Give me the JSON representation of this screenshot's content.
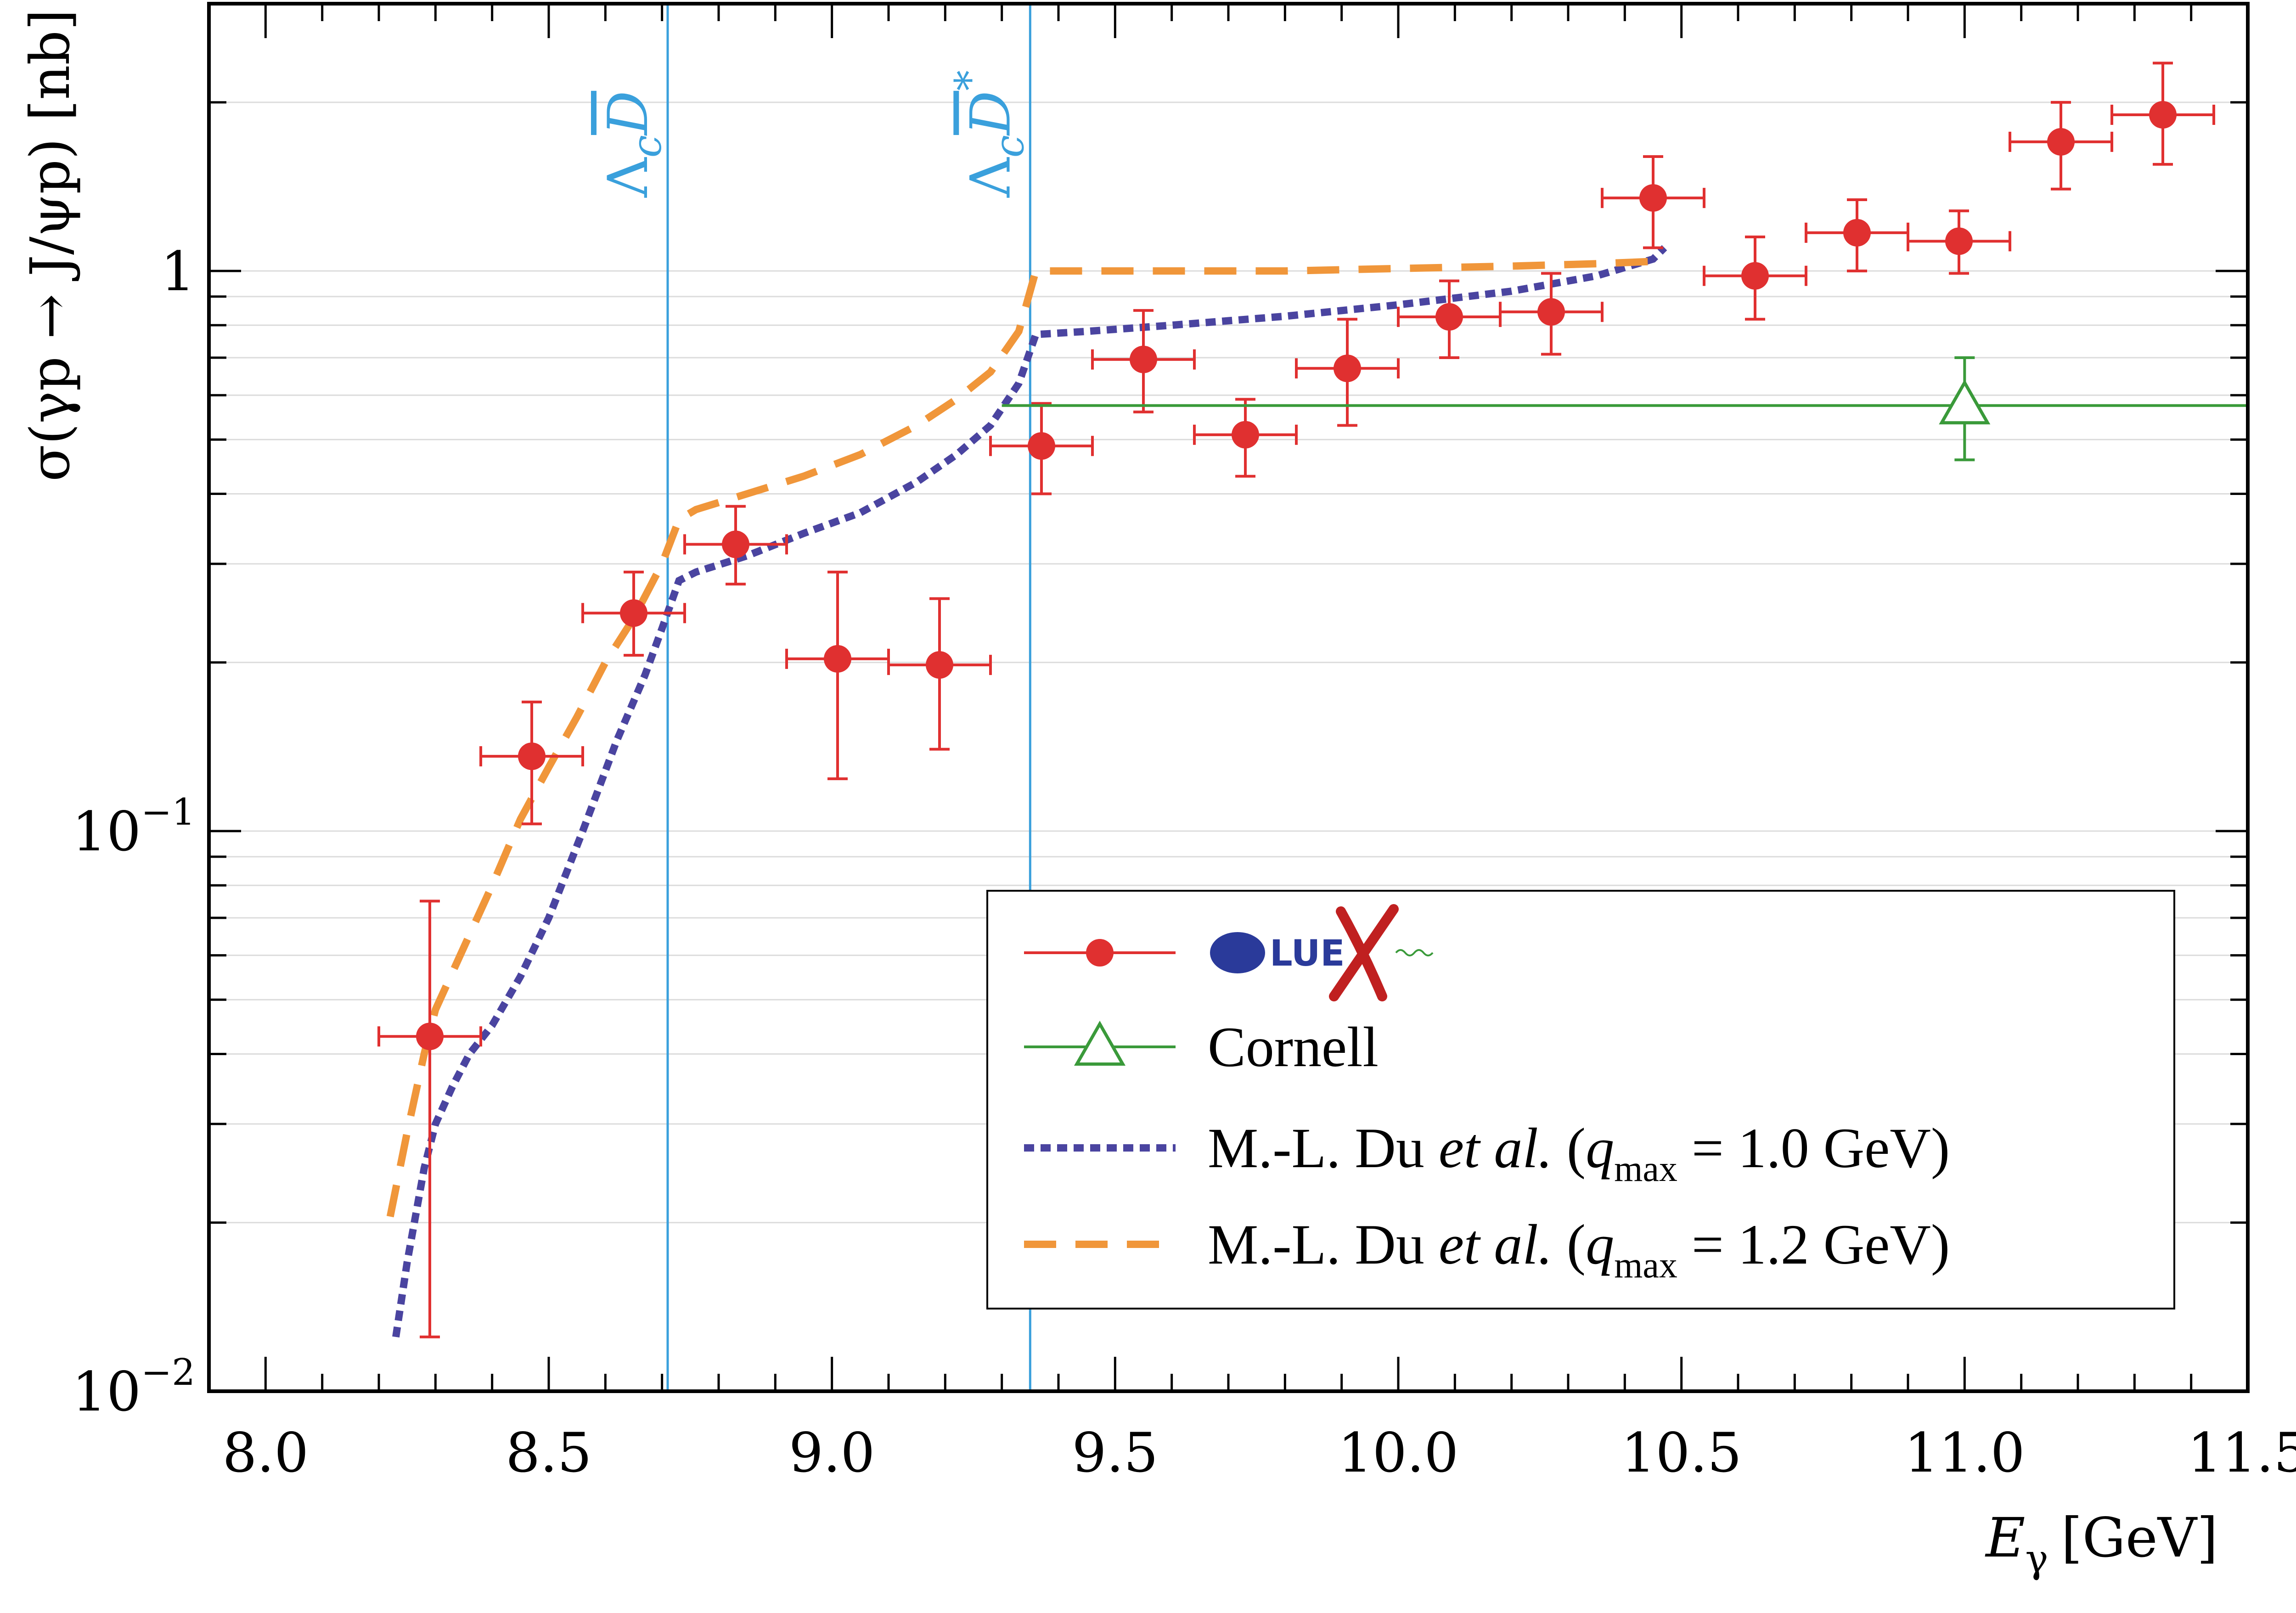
{
  "colors": {
    "gluex": "#e03030",
    "cornell": "#3a9a3a",
    "du10": "#4a44a0",
    "du12": "#f0963a",
    "threshold": "#3aa0dc",
    "grid": "#dcdcdc"
  },
  "chart_data": {
    "type": "scatter",
    "xlabel": "E",
    "xlabel_sub": "γ",
    "xlabel_unit": "[GeV]",
    "ylabel": "σ(γp → J/ψp) [nb]",
    "xlim": [
      7.9,
      11.5
    ],
    "ylim": [
      0.01,
      3.0
    ],
    "yscale": "log",
    "grid": "horizontal",
    "legend_position": "bottom-right",
    "x_ticks": [
      "8.0",
      "8.5",
      "9.0",
      "9.5",
      "10.0",
      "10.5",
      "11.0",
      "11.5"
    ],
    "y_ticks": [
      {
        "value": 0.01,
        "base": "10",
        "exp": "−2"
      },
      {
        "value": 0.1,
        "base": "10",
        "exp": "−1"
      },
      {
        "value": 1,
        "base": "1",
        "exp": ""
      }
    ],
    "thresholds": [
      {
        "x": 8.71,
        "label_main": "Λ",
        "label_sub": "c",
        "label_meson": "D",
        "label_sup": ""
      },
      {
        "x": 9.35,
        "label_main": "Λ",
        "label_sub": "c",
        "label_meson": "D",
        "label_sup": "*"
      }
    ],
    "series": [
      {
        "name": "GlueX",
        "logo": "GLUEX",
        "marker": "circle",
        "points": [
          {
            "x": 8.29,
            "y": 0.043,
            "xerr": 0.09,
            "ylo": 0.0125,
            "yhi": 0.075
          },
          {
            "x": 8.47,
            "y": 0.136,
            "xerr": 0.09,
            "ylo": 0.103,
            "yhi": 0.17
          },
          {
            "x": 8.65,
            "y": 0.245,
            "xerr": 0.09,
            "ylo": 0.206,
            "yhi": 0.29
          },
          {
            "x": 8.83,
            "y": 0.325,
            "xerr": 0.09,
            "ylo": 0.276,
            "yhi": 0.38
          },
          {
            "x": 9.01,
            "y": 0.203,
            "xerr": 0.09,
            "ylo": 0.124,
            "yhi": 0.29
          },
          {
            "x": 9.19,
            "y": 0.198,
            "xerr": 0.09,
            "ylo": 0.14,
            "yhi": 0.26
          },
          {
            "x": 9.37,
            "y": 0.487,
            "xerr": 0.09,
            "ylo": 0.4,
            "yhi": 0.58
          },
          {
            "x": 9.55,
            "y": 0.695,
            "xerr": 0.09,
            "ylo": 0.56,
            "yhi": 0.85
          },
          {
            "x": 9.73,
            "y": 0.51,
            "xerr": 0.09,
            "ylo": 0.43,
            "yhi": 0.59
          },
          {
            "x": 9.91,
            "y": 0.67,
            "xerr": 0.09,
            "ylo": 0.53,
            "yhi": 0.82
          },
          {
            "x": 10.09,
            "y": 0.828,
            "xerr": 0.09,
            "ylo": 0.7,
            "yhi": 0.96
          },
          {
            "x": 10.27,
            "y": 0.845,
            "xerr": 0.09,
            "ylo": 0.71,
            "yhi": 0.99
          },
          {
            "x": 10.45,
            "y": 1.35,
            "xerr": 0.09,
            "ylo": 1.1,
            "yhi": 1.6
          },
          {
            "x": 10.63,
            "y": 0.98,
            "xerr": 0.09,
            "ylo": 0.82,
            "yhi": 1.15
          },
          {
            "x": 10.81,
            "y": 1.17,
            "xerr": 0.09,
            "ylo": 1.0,
            "yhi": 1.34
          },
          {
            "x": 10.99,
            "y": 1.13,
            "xerr": 0.09,
            "ylo": 0.99,
            "yhi": 1.28
          },
          {
            "x": 11.17,
            "y": 1.7,
            "xerr": 0.09,
            "ylo": 1.4,
            "yhi": 2.0
          },
          {
            "x": 11.35,
            "y": 1.9,
            "xerr": 0.09,
            "ylo": 1.55,
            "yhi": 2.35
          }
        ]
      },
      {
        "name": "Cornell",
        "marker": "open-triangle",
        "points": [
          {
            "x": 11.0,
            "y": 0.575,
            "xlo": 9.3,
            "xhi": 11.5,
            "ylo": 0.46,
            "yhi": 0.7
          }
        ]
      },
      {
        "name": "M.-L. Du",
        "name_rest": "et al.",
        "param": "q",
        "param_sub": "max",
        "param_value": "= 1.0 GeV",
        "style": "dotted",
        "x": [
          8.23,
          8.25,
          8.28,
          8.3,
          8.33,
          8.36,
          8.4,
          8.45,
          8.5,
          8.56,
          8.62,
          8.67,
          8.7,
          8.73,
          8.76,
          8.85,
          8.95,
          9.05,
          9.15,
          9.22,
          9.28,
          9.33,
          9.36,
          9.45,
          9.6,
          9.8,
          10.0,
          10.2,
          10.35,
          10.45,
          10.47
        ],
        "y": [
          0.0125,
          0.017,
          0.025,
          0.03,
          0.035,
          0.04,
          0.045,
          0.055,
          0.07,
          0.1,
          0.145,
          0.19,
          0.23,
          0.28,
          0.29,
          0.31,
          0.34,
          0.37,
          0.42,
          0.47,
          0.53,
          0.63,
          0.77,
          0.78,
          0.8,
          0.83,
          0.87,
          0.92,
          0.98,
          1.05,
          1.1
        ]
      },
      {
        "name": "M.-L. Du",
        "name_rest": "et al.",
        "param": "q",
        "param_sub": "max",
        "param_value": "= 1.2 GeV",
        "style": "dashed",
        "x": [
          8.22,
          8.25,
          8.28,
          8.3,
          8.35,
          8.4,
          8.45,
          8.5,
          8.55,
          8.6,
          8.65,
          8.7,
          8.73,
          8.76,
          8.85,
          8.95,
          9.05,
          9.15,
          9.22,
          9.28,
          9.33,
          9.36,
          9.5,
          9.8,
          10.0,
          10.2,
          10.35,
          10.45,
          10.47
        ],
        "y": [
          0.0205,
          0.029,
          0.04,
          0.048,
          0.062,
          0.08,
          0.105,
          0.13,
          0.16,
          0.2,
          0.24,
          0.3,
          0.36,
          0.375,
          0.4,
          0.43,
          0.47,
          0.53,
          0.59,
          0.66,
          0.78,
          1.0,
          1.0,
          1.0,
          1.01,
          1.02,
          1.03,
          1.04,
          1.05
        ]
      }
    ]
  }
}
